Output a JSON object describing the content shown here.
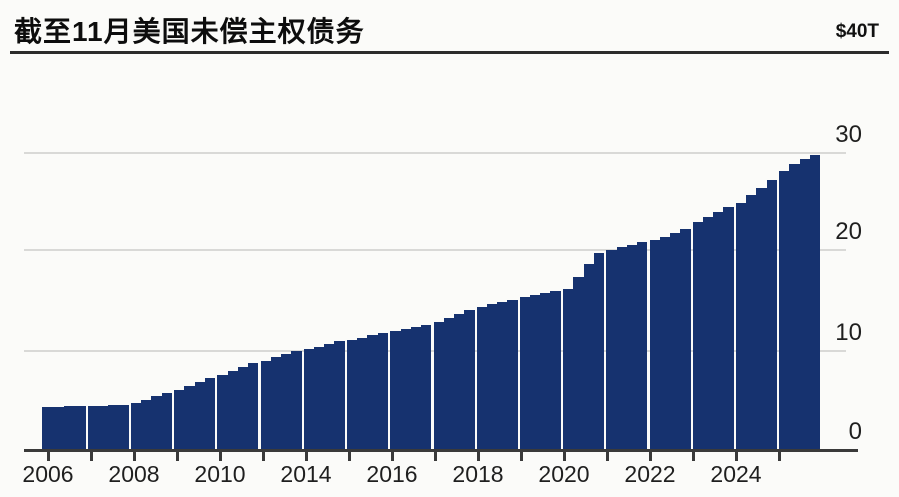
{
  "header": {
    "title": "截至11月美国未偿主权债务",
    "axis_top_label": "$40T"
  },
  "colors": {
    "bar": "#16326f",
    "background": "#fbfbf9",
    "gridline": "#d9d9d7",
    "axis": "#3a3a3a",
    "text": "#1a1a1a"
  },
  "chart_data": {
    "type": "bar",
    "title": "截至11月美国未偿主权债务",
    "xlabel": "",
    "ylabel": "",
    "unit": "trillion USD",
    "ylim": [
      0,
      40
    ],
    "y_ticks": [
      0,
      10,
      20,
      30
    ],
    "y_axis_side": "right",
    "y_axis_top_label": "$40T",
    "grid": "horizontal",
    "legend": "none",
    "x_tick_labels_shown": [
      "2006",
      "2008",
      "2010",
      "2014",
      "2016",
      "2018",
      "2020",
      "2022",
      "2024"
    ],
    "bar_style": "quarterly steps grouped per year, thin white gap between year groups",
    "values_by_year_group": [
      [
        4.35,
        4.38,
        4.42,
        4.45
      ],
      [
        4.45,
        4.48,
        4.52,
        4.55
      ],
      [
        4.75,
        5.1,
        5.45,
        5.8
      ],
      [
        6.1,
        6.5,
        6.9,
        7.3
      ],
      [
        7.6,
        8.0,
        8.4,
        8.8
      ],
      [
        9.0,
        9.35,
        9.7,
        10.0
      ],
      [
        10.2,
        10.45,
        10.75,
        11.0
      ],
      [
        11.15,
        11.35,
        11.6,
        11.8
      ],
      [
        12.0,
        12.2,
        12.4,
        12.6
      ],
      [
        12.9,
        13.3,
        13.7,
        14.1
      ],
      [
        14.4,
        14.7,
        15.0,
        15.2
      ],
      [
        15.45,
        15.7,
        15.9,
        16.1
      ],
      [
        16.3,
        17.5,
        18.8,
        19.9
      ],
      [
        20.2,
        20.5,
        20.75,
        21.0
      ],
      [
        21.2,
        21.5,
        21.9,
        22.3
      ],
      [
        23.0,
        23.5,
        24.0,
        24.5
      ],
      [
        25.0,
        25.8,
        26.5,
        27.3
      ],
      [
        28.2,
        28.9,
        29.4,
        29.8
      ]
    ]
  }
}
